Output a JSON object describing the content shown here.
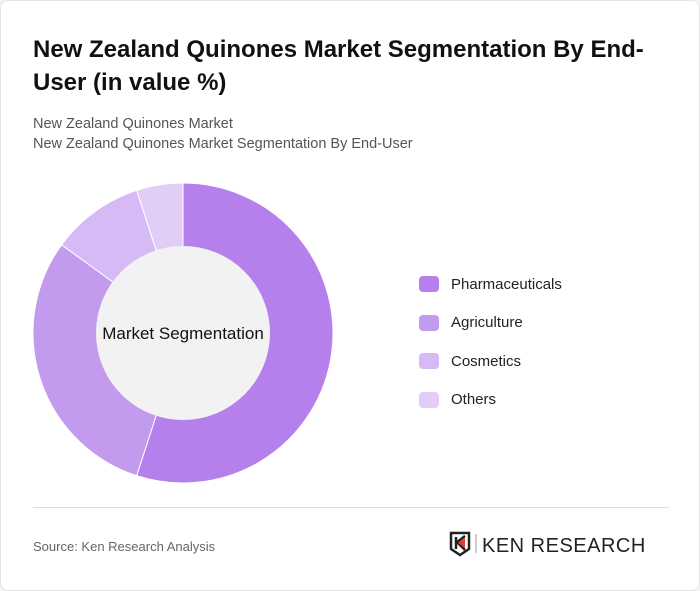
{
  "title": "New Zealand Quinones Market Segmentation By End-User (in value %)",
  "subtitle_1": "New Zealand Quinones Market",
  "subtitle_2": "New Zealand Quinones Market Segmentation By End-User",
  "chart_data": {
    "type": "pie",
    "variant": "donut",
    "center_label": "Market Segmentation",
    "categories": [
      "Pharmaceuticals",
      "Agriculture",
      "Cosmetics",
      "Others"
    ],
    "values": [
      55,
      30,
      10,
      5
    ],
    "colors": [
      "#b57fec",
      "#c39bee",
      "#d6baf5",
      "#e2cdf7"
    ],
    "legend_position": "right"
  },
  "source": "Source: Ken Research Analysis",
  "logo_text": "KEN RESEARCH"
}
